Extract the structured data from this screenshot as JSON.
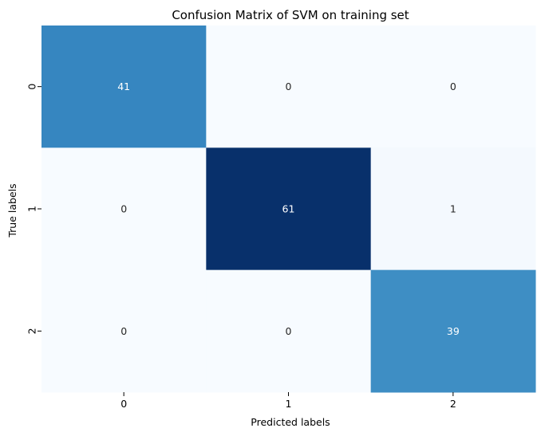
{
  "chart_data": {
    "type": "heatmap",
    "title": "Confusion Matrix of SVM on training set",
    "xlabel": "Predicted labels",
    "ylabel": "True labels",
    "x_categories": [
      "0",
      "1",
      "2"
    ],
    "y_categories": [
      "0",
      "1",
      "2"
    ],
    "values": [
      [
        41,
        0,
        0
      ],
      [
        0,
        61,
        1
      ],
      [
        0,
        0,
        39
      ]
    ],
    "colormap": "Blues",
    "vmin": 0,
    "vmax": 61,
    "annotations": true,
    "colorbar": false,
    "grid": false
  },
  "colors": {
    "low": "#f7fbff",
    "high": "#08306b",
    "text_dark": "#262626",
    "text_light": "#ffffff"
  }
}
